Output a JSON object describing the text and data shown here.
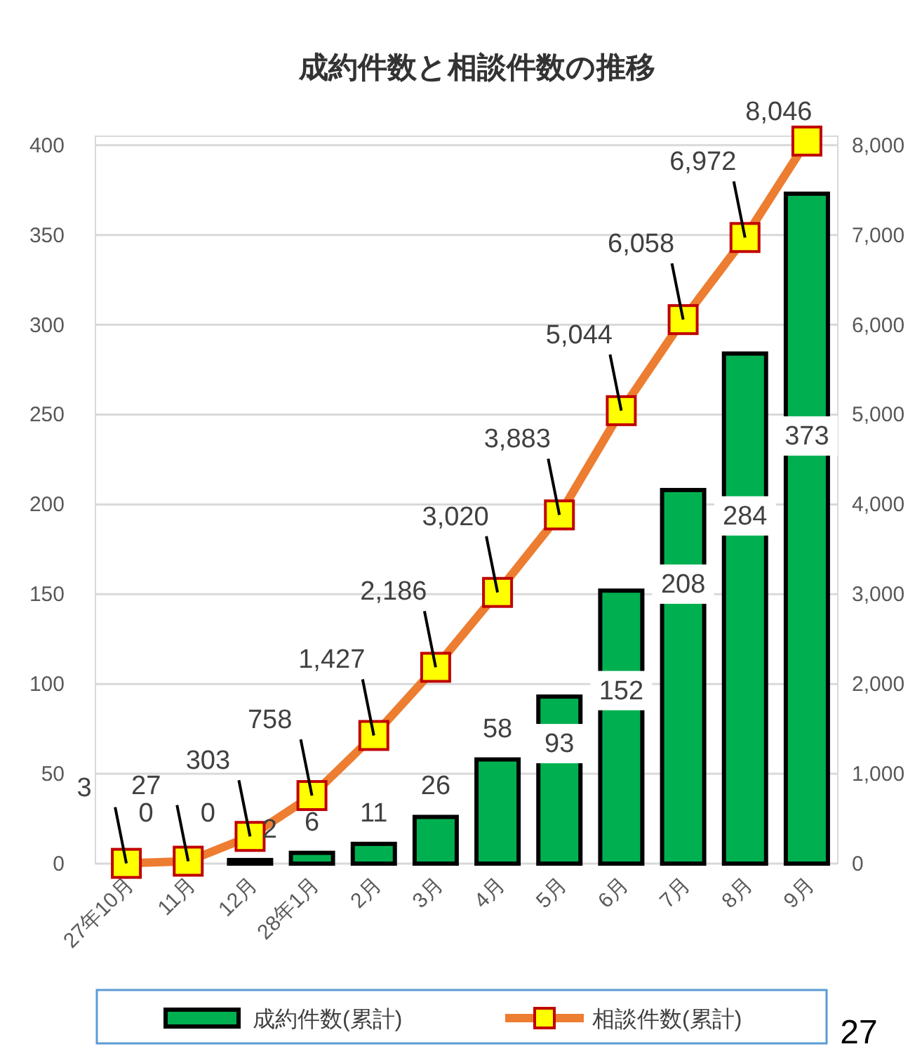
{
  "chart_data": {
    "type": "bar",
    "title": "成約件数と相談件数の推移",
    "categories": [
      "27年10月",
      "11月",
      "12月",
      "28年1月",
      "2月",
      "3月",
      "4月",
      "5月",
      "6月",
      "7月",
      "8月",
      "9月"
    ],
    "series": [
      {
        "name": "成約件数(累計)",
        "color": "#00b050",
        "values": [
          0,
          0,
          2,
          6,
          11,
          26,
          58,
          93,
          152,
          208,
          284,
          373
        ]
      },
      {
        "name": "相談件数(累計)",
        "type": "line",
        "axis": "y2",
        "color": "#ed7d31",
        "marker": "square",
        "values": [
          3,
          27,
          303,
          758,
          1427,
          2186,
          3020,
          3883,
          5044,
          6058,
          6972,
          8046
        ],
        "value_labels": [
          "3",
          "27",
          "303",
          "758",
          "1,427",
          "2,186",
          "3,020",
          "3,883",
          "5,044",
          "6,058",
          "6,972",
          "8,046"
        ]
      }
    ],
    "ylim": [
      0,
      405
    ],
    "yticks": [
      0,
      50,
      100,
      150,
      200,
      250,
      300,
      350,
      400
    ],
    "y2lim": [
      0,
      8100
    ],
    "y2ticks": [
      0,
      {
        "value": 1000,
        "label": "1,000"
      },
      {
        "value": 2000,
        "label": "2,000"
      },
      {
        "value": 3000,
        "label": "3,000"
      },
      {
        "value": 4000,
        "label": "4,000"
      },
      {
        "value": 5000,
        "label": "5,000"
      },
      {
        "value": 6000,
        "label": "6,000"
      },
      {
        "value": 7000,
        "label": "7,000"
      },
      {
        "value": 8000,
        "label": "8,000"
      }
    ],
    "grid": "y",
    "legend": "bottom",
    "data_labels": true,
    "annotations": [
      "27"
    ]
  }
}
